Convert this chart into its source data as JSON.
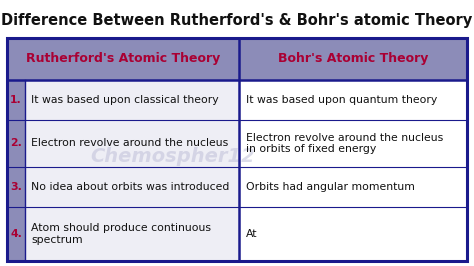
{
  "title": "Difference Between Rutherford's & Bohr's atomic Theory",
  "title_fontsize": 10.5,
  "title_color": "#111111",
  "background_color": "#ffffff",
  "table_border_color": "#1a1a8c",
  "header_bg_color": "#8c8cb8",
  "header_left": "Rutherford's Atomic Theory",
  "header_right": "Bohr's Atomic Theory",
  "header_text_color": "#aa0033",
  "header_fontsize": 9.0,
  "number_color": "#aa0033",
  "text_color": "#111111",
  "body_fontsize": 7.8,
  "left_col_items": [
    "It was based upon classical theory",
    "Electron revolve around the nucleus",
    "No idea about orbits was introduced",
    "Atom should produce continuous\nspectrum"
  ],
  "right_col_items": [
    "It was based upon quantum theory",
    "Electron revolve around the nucleus\nin orbits of fixed energy",
    "Orbits had angular momentum",
    "At"
  ],
  "watermark": "Chemospher12",
  "watermark_color": "#c0c0d8",
  "watermark_fontsize": 14,
  "strip_color": "#8c8cb8",
  "row_divider_color": "#1a1a8c",
  "body_left_bg": "#eeeef5",
  "body_right_bg": "#ffffff"
}
